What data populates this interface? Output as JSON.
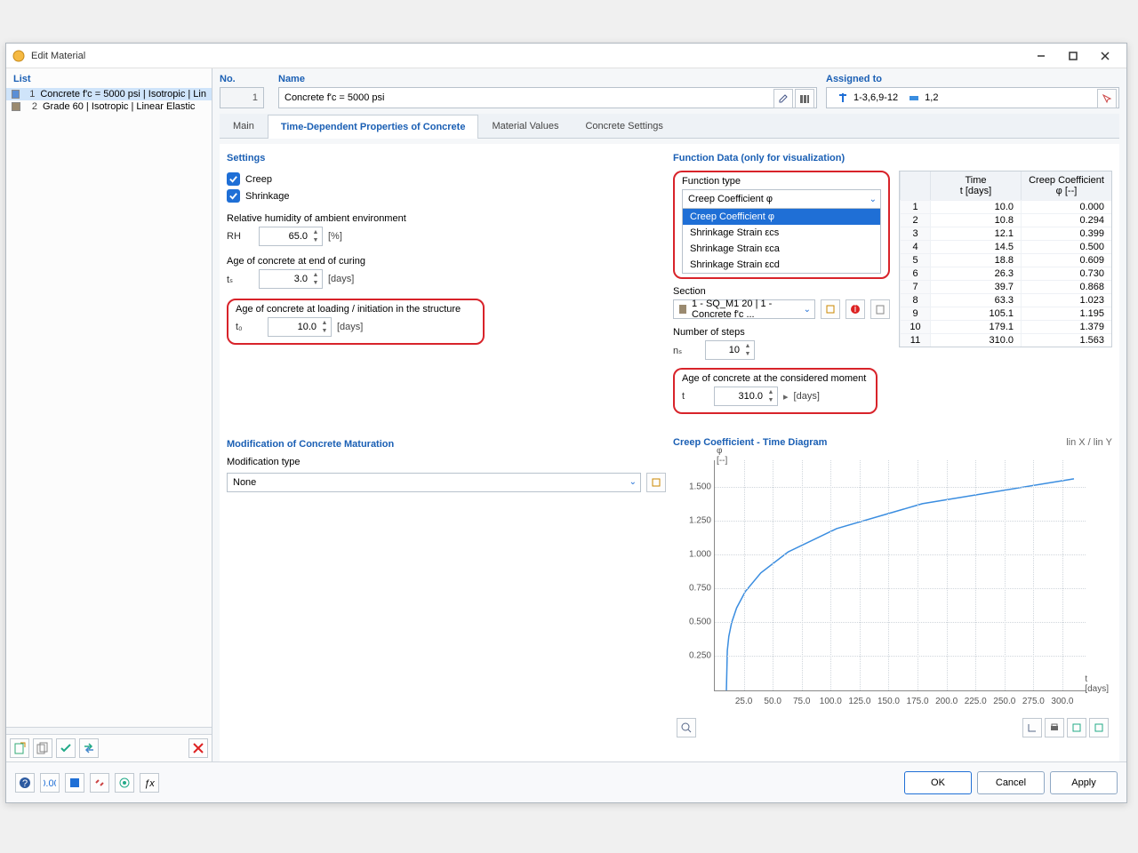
{
  "window": {
    "title": "Edit Material"
  },
  "list": {
    "header": "List",
    "items": [
      {
        "idx": "1",
        "swatch": "#5a8fd6",
        "label": "Concrete f'c = 5000 psi | Isotropic | Lin",
        "selected": true
      },
      {
        "idx": "2",
        "swatch": "#9a8a70",
        "label": "Grade 60 | Isotropic | Linear Elastic",
        "selected": false
      }
    ]
  },
  "header": {
    "no_label": "No.",
    "no_value": "1",
    "name_label": "Name",
    "name_value": "Concrete f'c = 5000 psi",
    "assigned_label": "Assigned to",
    "assigned_value1": "1-3,6,9-12",
    "assigned_value2": "1,2"
  },
  "tabs": [
    "Main",
    "Time-Dependent Properties of Concrete",
    "Material Values",
    "Concrete Settings"
  ],
  "active_tab": 1,
  "settings": {
    "title": "Settings",
    "creep": "Creep",
    "shrinkage": "Shrinkage",
    "rh_caption": "Relative humidity of ambient environment",
    "rh_label": "RH",
    "rh_value": "65.0",
    "rh_unit": "[%]",
    "ts_caption": "Age of concrete at end of curing",
    "ts_label": "tₛ",
    "ts_value": "3.0",
    "ts_unit": "[days]",
    "t0_caption": "Age of concrete at loading / initiation in the structure",
    "t0_label": "t₀",
    "t0_value": "10.0",
    "t0_unit": "[days]"
  },
  "modification": {
    "title": "Modification of Concrete Maturation",
    "label": "Modification type",
    "value": "None"
  },
  "funcdata": {
    "title": "Function Data (only for visualization)",
    "functype_label": "Function type",
    "functype_value": "Creep Coefficient φ",
    "options": [
      "Creep Coefficient φ",
      "Shrinkage Strain εcs",
      "Shrinkage Strain εca",
      "Shrinkage Strain εcd"
    ],
    "section_label": "Section",
    "section_value": "1 - SQ_M1 20 | 1 - Concrete f'c ...",
    "steps_label": "Number of steps",
    "steps_sym": "nₛ",
    "steps_value": "10",
    "age_caption": "Age of concrete at the considered moment",
    "age_sym": "t",
    "age_value": "310.0",
    "age_unit": "[days]"
  },
  "table": {
    "col_time": "Time",
    "col_time_unit": "t [days]",
    "col_coef": "Creep Coefficient",
    "col_coef_unit": "φ [--]",
    "rows": [
      [
        "1",
        "10.0",
        "0.000"
      ],
      [
        "2",
        "10.8",
        "0.294"
      ],
      [
        "3",
        "12.1",
        "0.399"
      ],
      [
        "4",
        "14.5",
        "0.500"
      ],
      [
        "5",
        "18.8",
        "0.609"
      ],
      [
        "6",
        "26.3",
        "0.730"
      ],
      [
        "7",
        "39.7",
        "0.868"
      ],
      [
        "8",
        "63.3",
        "1.023"
      ],
      [
        "9",
        "105.1",
        "1.195"
      ],
      [
        "10",
        "179.1",
        "1.379"
      ],
      [
        "11",
        "310.0",
        "1.563"
      ]
    ]
  },
  "chart": {
    "title": "Creep Coefficient - Time Diagram",
    "scale_label": "lin X / lin Y",
    "y_unit": "φ\n[--]",
    "x_unit": "t\n[days]",
    "yticks": [
      "0.250",
      "0.500",
      "0.750",
      "1.000",
      "1.250",
      "1.500"
    ],
    "xticks": [
      "25.0",
      "50.0",
      "75.0",
      "100.0",
      "125.0",
      "150.0",
      "175.0",
      "200.0",
      "225.0",
      "250.0",
      "275.0",
      "300.0"
    ],
    "xlim": [
      0,
      320
    ],
    "ylim": [
      0,
      1.7
    ],
    "series_color": "#3a8de0",
    "points": [
      [
        10,
        0
      ],
      [
        10.8,
        0.294
      ],
      [
        12.1,
        0.399
      ],
      [
        14.5,
        0.5
      ],
      [
        18.8,
        0.609
      ],
      [
        26.3,
        0.73
      ],
      [
        39.7,
        0.868
      ],
      [
        63.3,
        1.023
      ],
      [
        105.1,
        1.195
      ],
      [
        179.1,
        1.379
      ],
      [
        310,
        1.563
      ]
    ]
  },
  "footer": {
    "ok": "OK",
    "cancel": "Cancel",
    "apply": "Apply"
  }
}
